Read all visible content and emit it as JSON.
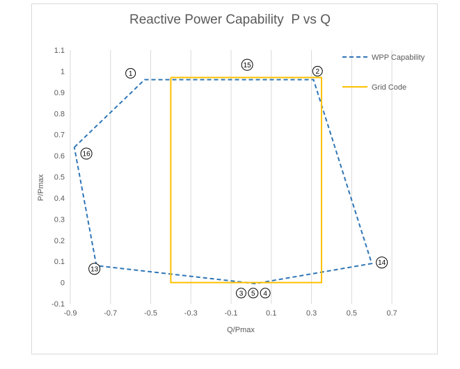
{
  "chart_data": {
    "type": "scatter",
    "title": "Reactive Power Capability  P vs Q",
    "xlabel": "Q/Pmax",
    "ylabel": "P/Pmax",
    "xlim": [
      -0.9,
      0.8
    ],
    "ylim": [
      -0.1,
      1.1
    ],
    "x_ticks": [
      "-0.9",
      "-0.7",
      "-0.5",
      "-0.3",
      "-0.1",
      "0.1",
      "0.3",
      "0.5",
      "0.7"
    ],
    "y_ticks": [
      "-0.1",
      "0",
      "0.1",
      "0.2",
      "0.3",
      "0.4",
      "0.5",
      "0.6",
      "0.7",
      "0.8",
      "0.9",
      "1",
      "1.1"
    ],
    "grid": "vertical",
    "legend_position": "top-right",
    "series": [
      {
        "name": "WPP Capability",
        "style": "dashed",
        "color": "#2e75b6",
        "x": [
          -0.88,
          -0.53,
          0.31,
          0.6,
          0.02,
          -0.77,
          -0.88
        ],
        "y": [
          0.64,
          0.96,
          0.96,
          0.09,
          -0.005,
          0.08,
          0.64
        ]
      },
      {
        "name": "Grid Code",
        "style": "solid",
        "color": "#ffc000",
        "x": [
          -0.4,
          0.35,
          0.35,
          -0.4,
          -0.4
        ],
        "y": [
          0.97,
          0.97,
          0.0,
          0.0,
          0.97
        ]
      }
    ],
    "annotations": [
      {
        "label": "1",
        "x": -0.6,
        "y": 0.99
      },
      {
        "label": "2",
        "x": 0.33,
        "y": 1.0
      },
      {
        "label": "15",
        "x": -0.02,
        "y": 1.03
      },
      {
        "label": "16",
        "x": -0.82,
        "y": 0.61
      },
      {
        "label": "13",
        "x": -0.78,
        "y": 0.065
      },
      {
        "label": "14",
        "x": 0.65,
        "y": 0.095
      },
      {
        "label": "3",
        "x": -0.05,
        "y": -0.05
      },
      {
        "label": "5",
        "x": 0.01,
        "y": -0.05
      },
      {
        "label": "4",
        "x": 0.07,
        "y": -0.05
      }
    ]
  }
}
